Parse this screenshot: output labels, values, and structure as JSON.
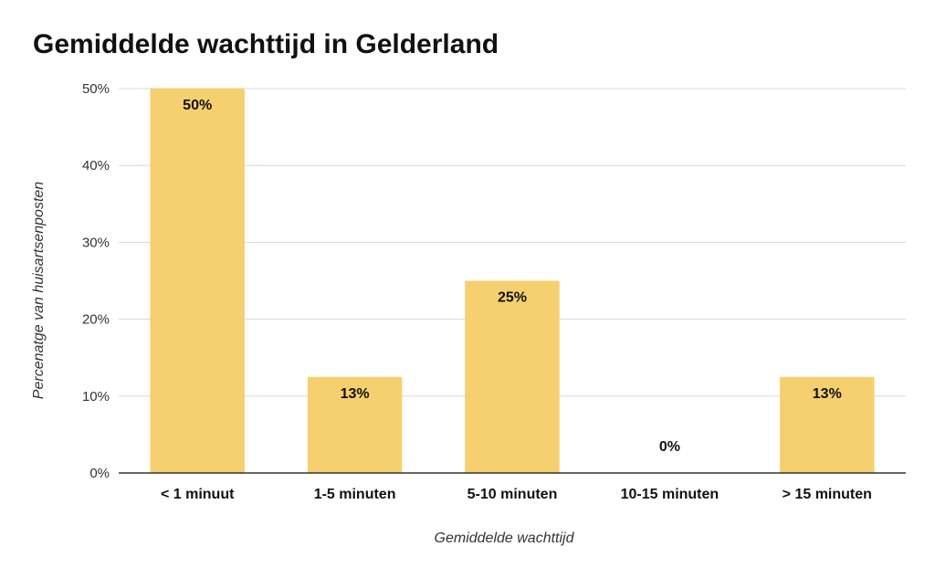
{
  "chart_data": {
    "type": "bar",
    "title": "Gemiddelde wachttijd in Gelderland",
    "xlabel": "Gemiddelde wachttijd",
    "ylabel": "Percenatge van huisartsenposten",
    "categories": [
      "< 1 minuut",
      "1-5 minuten",
      "5-10 minuten",
      "10-15 minuten",
      "> 15 minuten"
    ],
    "values": [
      50,
      12.5,
      25,
      0,
      12.5
    ],
    "data_labels": [
      "50%",
      "13%",
      "25%",
      "0%",
      "13%"
    ],
    "ylim": [
      0,
      50
    ],
    "yticks": [
      0,
      10,
      20,
      30,
      40,
      50
    ],
    "ytick_labels": [
      "0%",
      "10%",
      "20%",
      "30%",
      "40%",
      "50%"
    ],
    "grid": true,
    "legend": "none",
    "colors": {
      "bar": "#f6d06f",
      "grid": "#d9d9d9",
      "axis": "#333333"
    }
  }
}
